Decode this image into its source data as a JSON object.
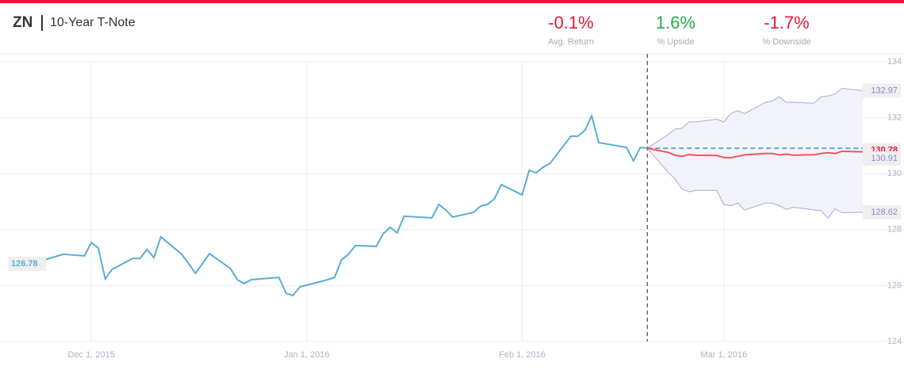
{
  "chart_data": {
    "type": "line",
    "title": "ZN",
    "subtitle": "10-Year T-Note",
    "stats": [
      {
        "text": "-0.1%",
        "label": "Avg. Return",
        "color": "#e8173a"
      },
      {
        "text": "1.6%",
        "label": "% Upside",
        "color": "#1fae4b"
      },
      {
        "text": "-1.7%",
        "label": "% Downside",
        "color": "#e8173a"
      }
    ],
    "xlim": [
      "2015-11-19",
      "2016-03-21"
    ],
    "xticks": [
      {
        "value": "2015-12-01",
        "label": "Dec 1, 2015"
      },
      {
        "value": "2016-01-01",
        "label": "Jan 1, 2016"
      },
      {
        "value": "2016-02-01",
        "label": "Feb 1, 2016"
      },
      {
        "value": "2016-03-01",
        "label": "Mar 1, 2016"
      }
    ],
    "ylim": [
      124,
      134
    ],
    "yticks": [
      124,
      126,
      128,
      130,
      132,
      134
    ],
    "grid": true,
    "series": [
      {
        "color": "#5aadd6",
        "x": [
          "2015-11-19",
          "2015-11-20",
          "2015-11-23",
          "2015-11-27",
          "2015-11-30",
          "2015-12-01",
          "2015-12-02",
          "2015-12-03",
          "2015-12-04",
          "2015-12-07",
          "2015-12-08",
          "2015-12-09",
          "2015-12-10",
          "2015-12-11",
          "2015-12-14",
          "2015-12-16",
          "2015-12-18",
          "2015-12-21",
          "2015-12-22",
          "2015-12-23",
          "2015-12-24",
          "2015-12-28",
          "2015-12-29",
          "2015-12-30",
          "2015-12-31",
          "2016-01-04",
          "2016-01-05",
          "2016-01-06",
          "2016-01-07",
          "2016-01-08",
          "2016-01-11",
          "2016-01-12",
          "2016-01-13",
          "2016-01-14",
          "2016-01-15",
          "2016-01-19",
          "2016-01-20",
          "2016-01-21",
          "2016-01-22",
          "2016-01-25",
          "2016-01-26",
          "2016-01-27",
          "2016-01-28",
          "2016-01-29",
          "2016-02-01",
          "2016-02-02",
          "2016-02-03",
          "2016-02-04",
          "2016-02-05",
          "2016-02-08",
          "2016-02-09",
          "2016-02-10",
          "2016-02-11",
          "2016-02-12",
          "2016-02-16",
          "2016-02-17",
          "2016-02-18",
          "2016-02-19"
        ],
        "values": [
          126.78,
          126.72,
          126.83,
          127.12,
          127.06,
          127.54,
          127.34,
          126.24,
          126.58,
          126.97,
          126.97,
          127.29,
          127.0,
          127.74,
          127.12,
          126.44,
          127.14,
          126.61,
          126.21,
          126.07,
          126.21,
          126.29,
          125.73,
          125.64,
          125.95,
          126.21,
          126.29,
          126.92,
          127.12,
          127.43,
          127.4,
          127.85,
          128.08,
          127.88,
          128.48,
          128.42,
          128.9,
          128.7,
          128.45,
          128.62,
          128.84,
          128.9,
          129.1,
          129.61,
          129.24,
          130.12,
          130.03,
          130.23,
          130.37,
          131.34,
          131.34,
          131.54,
          132.07,
          131.11,
          130.94,
          130.46,
          130.94,
          130.91
        ]
      },
      {
        "color": "#f3565d",
        "x": [
          "2016-02-19",
          "2016-02-22",
          "2016-02-23",
          "2016-02-24",
          "2016-02-25",
          "2016-02-26",
          "2016-02-29",
          "2016-03-01",
          "2016-03-02",
          "2016-03-03",
          "2016-03-04",
          "2016-03-07",
          "2016-03-08",
          "2016-03-09",
          "2016-03-10",
          "2016-03-11",
          "2016-03-14",
          "2016-03-15",
          "2016-03-16",
          "2016-03-17",
          "2016-03-18",
          "2016-03-21"
        ],
        "values": [
          130.91,
          130.76,
          130.66,
          130.62,
          130.68,
          130.66,
          130.65,
          130.58,
          130.57,
          130.62,
          130.67,
          130.72,
          130.72,
          130.67,
          130.7,
          130.66,
          130.68,
          130.72,
          130.75,
          130.72,
          130.8,
          130.78
        ]
      }
    ],
    "band": {
      "color": "#a9a9dc",
      "fill": "#f2f2fb",
      "x": [
        "2016-02-19",
        "2016-02-22",
        "2016-02-23",
        "2016-02-24",
        "2016-02-25",
        "2016-02-26",
        "2016-02-29",
        "2016-03-01",
        "2016-03-02",
        "2016-03-03",
        "2016-03-04",
        "2016-03-07",
        "2016-03-08",
        "2016-03-09",
        "2016-03-10",
        "2016-03-11",
        "2016-03-14",
        "2016-03-15",
        "2016-03-16",
        "2016-03-17",
        "2016-03-18",
        "2016-03-21"
      ],
      "upper": [
        130.91,
        131.4,
        131.6,
        131.62,
        131.85,
        131.85,
        131.95,
        131.85,
        132.15,
        132.25,
        132.15,
        132.55,
        132.6,
        132.75,
        132.55,
        132.55,
        132.52,
        132.75,
        132.78,
        132.85,
        133.05,
        132.97
      ],
      "lower": [
        130.91,
        130.05,
        129.8,
        129.45,
        129.35,
        129.4,
        129.4,
        128.9,
        128.85,
        128.95,
        128.7,
        128.95,
        128.95,
        128.85,
        128.72,
        128.8,
        128.7,
        128.68,
        128.4,
        128.75,
        128.6,
        128.62
      ]
    }
  }
}
